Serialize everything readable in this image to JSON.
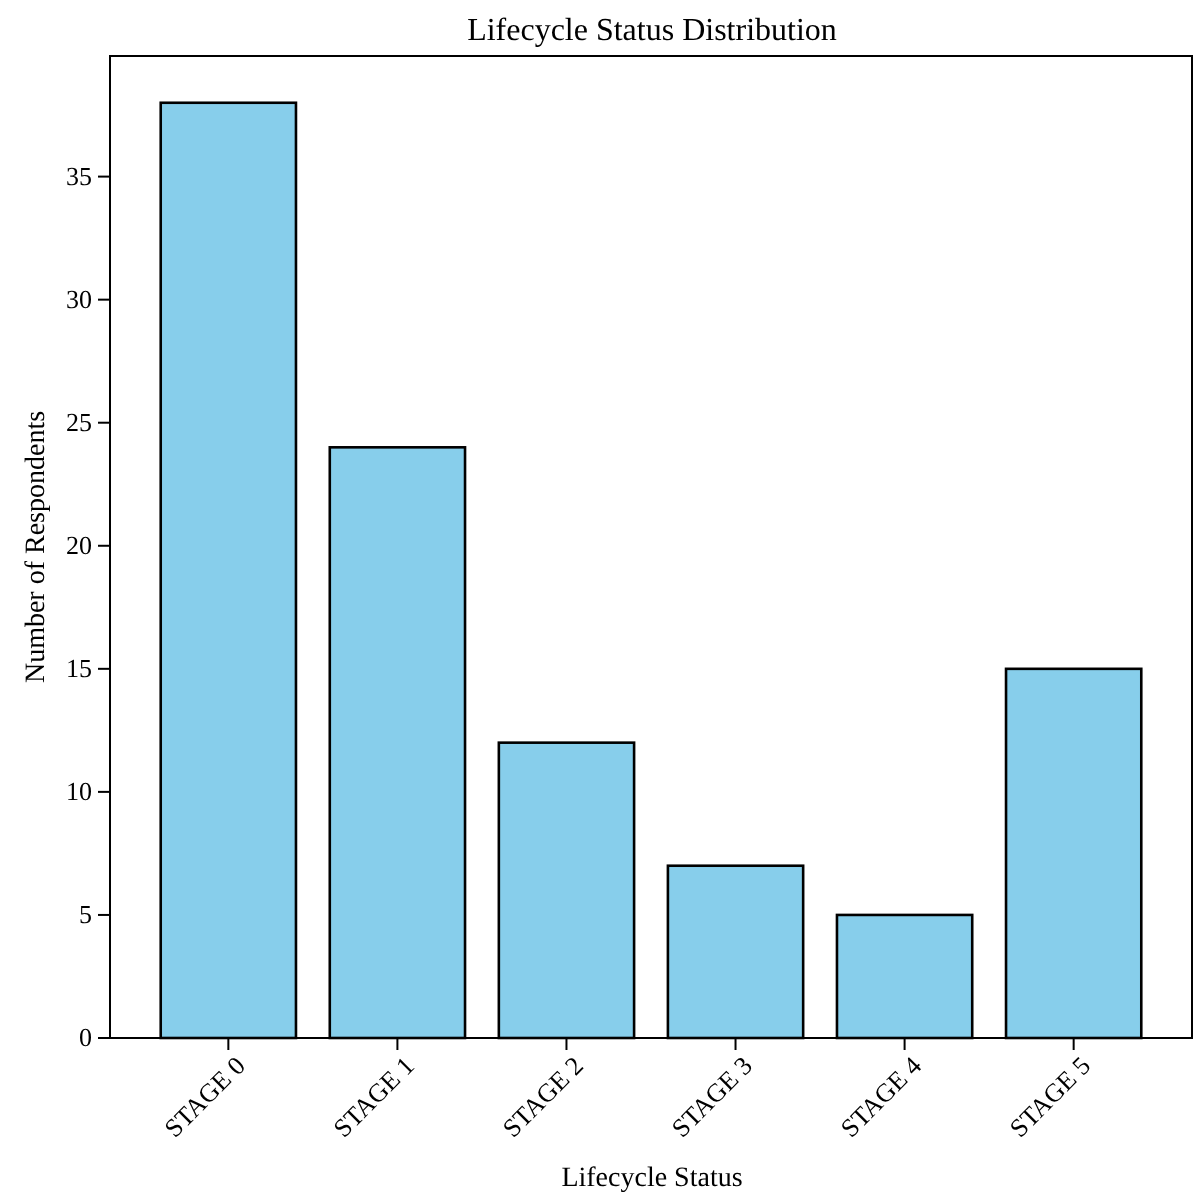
{
  "chart_data": {
    "type": "bar",
    "title": "Lifecycle Status Distribution",
    "xlabel": "Lifecycle Status",
    "ylabel": "Number of Respondents",
    "categories": [
      "STAGE 0",
      "STAGE 1",
      "STAGE 2",
      "STAGE 3",
      "STAGE 4",
      "STAGE 5"
    ],
    "values": [
      38,
      24,
      12,
      7,
      5,
      15
    ],
    "color": "#87ceeb",
    "ylim": [
      0,
      39.9
    ],
    "yticks": [
      0,
      5,
      10,
      15,
      20,
      25,
      30,
      35
    ],
    "grid": false
  }
}
